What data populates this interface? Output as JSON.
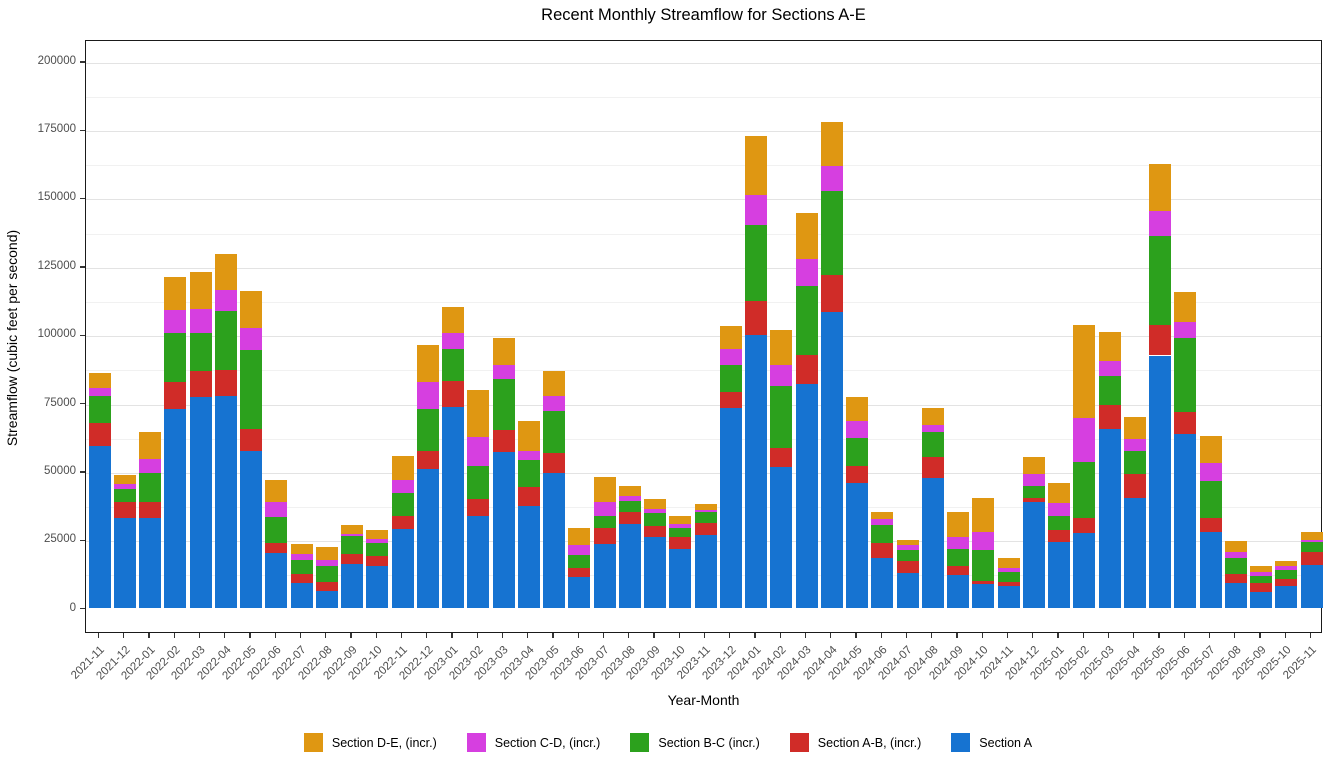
{
  "title": "Recent Monthly Streamflow for Sections A-E",
  "x_axis": {
    "label": "Year-Month"
  },
  "y_axis": {
    "label": "Streamflow (cubic feet per second)",
    "min": 0,
    "max": 200000,
    "major_step": 25000,
    "minor_step": 12500,
    "tick_labels": [
      "0",
      "25000",
      "50000",
      "75000",
      "100000",
      "125000",
      "150000",
      "175000",
      "200000"
    ]
  },
  "legend": [
    {
      "id": "section-d-e",
      "label": "Section D-E, (incr.)",
      "color": "#df9712"
    },
    {
      "id": "section-c-d",
      "label": "Section C-D, (incr.)",
      "color": "#d63fe0"
    },
    {
      "id": "section-b-c",
      "label": "Section B-C (incr.)",
      "color": "#2ca11d"
    },
    {
      "id": "section-a-b",
      "label": "Section A-B, (incr.)",
      "color": "#d02c28"
    },
    {
      "id": "section-a",
      "label": "Section A",
      "color": "#1673d1"
    }
  ],
  "chart_data": {
    "type": "bar",
    "stacked": true,
    "title": "Recent Monthly Streamflow for Sections A-E",
    "xlabel": "Year-Month",
    "ylabel": "Streamflow (cubic feet per second)",
    "ylim": [
      0,
      200000
    ],
    "grid": true,
    "legend_position": "bottom",
    "categories": [
      "2021-11",
      "2021-12",
      "2022-01",
      "2022-02",
      "2022-03",
      "2022-04",
      "2022-05",
      "2022-06",
      "2022-07",
      "2022-08",
      "2022-09",
      "2022-10",
      "2022-11",
      "2022-12",
      "2023-01",
      "2023-02",
      "2023-03",
      "2023-04",
      "2023-05",
      "2023-06",
      "2023-07",
      "2023-08",
      "2023-09",
      "2023-10",
      "2023-11",
      "2023-12",
      "2024-01",
      "2024-02",
      "2024-03",
      "2024-04",
      "2024-05",
      "2024-06",
      "2024-07",
      "2024-08",
      "2024-09",
      "2024-10",
      "2024-11",
      "2024-12",
      "2025-01",
      "2025-02",
      "2025-03",
      "2025-04",
      "2025-05",
      "2025-06",
      "2025-07",
      "2025-08",
      "2025-09",
      "2025-10",
      "2025-11"
    ],
    "series": [
      {
        "name": "Section A",
        "color": "#1673d1",
        "values": [
          59200,
          32800,
          32600,
          72600,
          77100,
          77400,
          57400,
          20000,
          8900,
          6100,
          15900,
          15400,
          28800,
          50700,
          73200,
          33400,
          57000,
          37300,
          49200,
          11300,
          23200,
          30400,
          25700,
          21400,
          26700,
          72900,
          99700,
          51300,
          81800,
          108200,
          45600,
          18000,
          12500,
          47400,
          11900,
          8500,
          8000,
          38500,
          24100,
          27200,
          65300,
          40000,
          92200,
          63500,
          27500,
          9000,
          5600,
          7800,
          15500
        ]
      },
      {
        "name": "Section A-B, (incr.)",
        "color": "#d02c28",
        "values": [
          8300,
          5900,
          6000,
          9800,
          9500,
          9500,
          7900,
          3500,
          3500,
          3100,
          3800,
          3600,
          4800,
          6700,
          9600,
          6300,
          7900,
          6700,
          7300,
          3100,
          5800,
          4400,
          4300,
          4600,
          4300,
          6100,
          12500,
          6900,
          10400,
          13600,
          6300,
          5500,
          4500,
          7600,
          3500,
          1300,
          1200,
          1500,
          4400,
          5500,
          8800,
          8900,
          11200,
          8100,
          5200,
          3300,
          3400,
          2700,
          4900
        ]
      },
      {
        "name": "Section B-C (incr.)",
        "color": "#2ca11d",
        "values": [
          9900,
          4700,
          10600,
          18000,
          13800,
          21400,
          28800,
          9500,
          4900,
          6200,
          6400,
          4500,
          8300,
          15200,
          11800,
          12000,
          18700,
          10100,
          15500,
          4800,
          4600,
          4200,
          4500,
          3000,
          3900,
          9800,
          27700,
          23000,
          25500,
          30700,
          10000,
          6700,
          4200,
          9100,
          6100,
          11400,
          3800,
          4600,
          5100,
          20700,
          10500,
          8500,
          32400,
          26900,
          13700,
          5700,
          2400,
          3400,
          3500
        ]
      },
      {
        "name": "Section C-D, (incr.)",
        "color": "#d63fe0",
        "values": [
          2800,
          1800,
          5100,
          8500,
          8800,
          8000,
          8100,
          5500,
          2400,
          1900,
          900,
          1600,
          4800,
          9800,
          5800,
          10600,
          5100,
          3300,
          5500,
          3700,
          5200,
          2000,
          1600,
          1600,
          900,
          5800,
          10900,
          7500,
          9800,
          8900,
          6500,
          2100,
          1700,
          2700,
          4500,
          6600,
          1500,
          4300,
          4500,
          15800,
          5700,
          4300,
          9400,
          5800,
          6400,
          2200,
          1500,
          1200,
          900
        ]
      },
      {
        "name": "Section D-E, (incr.)",
        "color": "#df9712",
        "values": [
          5600,
          3400,
          9900,
          11900,
          13600,
          13000,
          13700,
          8000,
          3500,
          4800,
          3300,
          3300,
          8800,
          13700,
          9700,
          17400,
          9900,
          11000,
          9200,
          6100,
          9100,
          3400,
          3600,
          2800,
          2100,
          8500,
          21600,
          13000,
          16700,
          16100,
          8800,
          2700,
          1900,
          6200,
          8900,
          12200,
          3500,
          6100,
          7400,
          34200,
          10400,
          7900,
          17000,
          11000,
          9800,
          4300,
          2200,
          2100,
          3000
        ]
      }
    ]
  }
}
